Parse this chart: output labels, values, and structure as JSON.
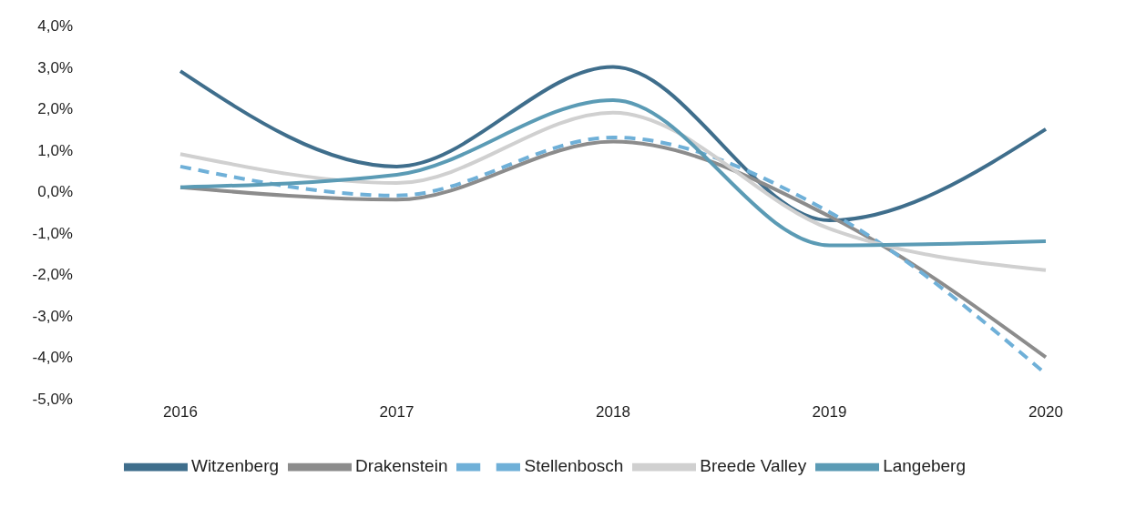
{
  "chart_data": {
    "type": "line",
    "categories": [
      "2016",
      "2017",
      "2018",
      "2019",
      "2020"
    ],
    "series": [
      {
        "name": "Witzenberg",
        "color": "#3f6e8c",
        "values": [
          2.9,
          0.6,
          3.0,
          -0.7,
          1.5
        ]
      },
      {
        "name": "Drakenstein",
        "color": "#8c8c8c",
        "values": [
          0.1,
          -0.2,
          1.2,
          -0.6,
          -4.0
        ]
      },
      {
        "name": "Stellenbosch",
        "color": "#6fb0d8",
        "line_style": "dashed",
        "values": [
          0.6,
          -0.1,
          1.3,
          -0.5,
          -4.4
        ]
      },
      {
        "name": "Breede Valley",
        "color": "#d0d0d0",
        "values": [
          0.9,
          0.2,
          1.9,
          -0.9,
          -1.9
        ]
      },
      {
        "name": "Langeberg",
        "color": "#5b9bb5",
        "values": [
          0.1,
          0.4,
          2.2,
          -1.3,
          -1.2
        ]
      }
    ],
    "ylim": [
      -5,
      4
    ],
    "yticks": [
      {
        "value": -5,
        "label": "-5,0%"
      },
      {
        "value": -4,
        "label": "-4,0%"
      },
      {
        "value": -3,
        "label": "-3,0%"
      },
      {
        "value": -2,
        "label": "-2,0%"
      },
      {
        "value": -1,
        "label": "-1,0%"
      },
      {
        "value": 0,
        "label": "0,0%"
      },
      {
        "value": 1,
        "label": "1,0%"
      },
      {
        "value": 2,
        "label": "2,0%"
      },
      {
        "value": 3,
        "label": "3,0%"
      },
      {
        "value": 4,
        "label": "4,0%"
      }
    ],
    "legend": "bottom"
  }
}
